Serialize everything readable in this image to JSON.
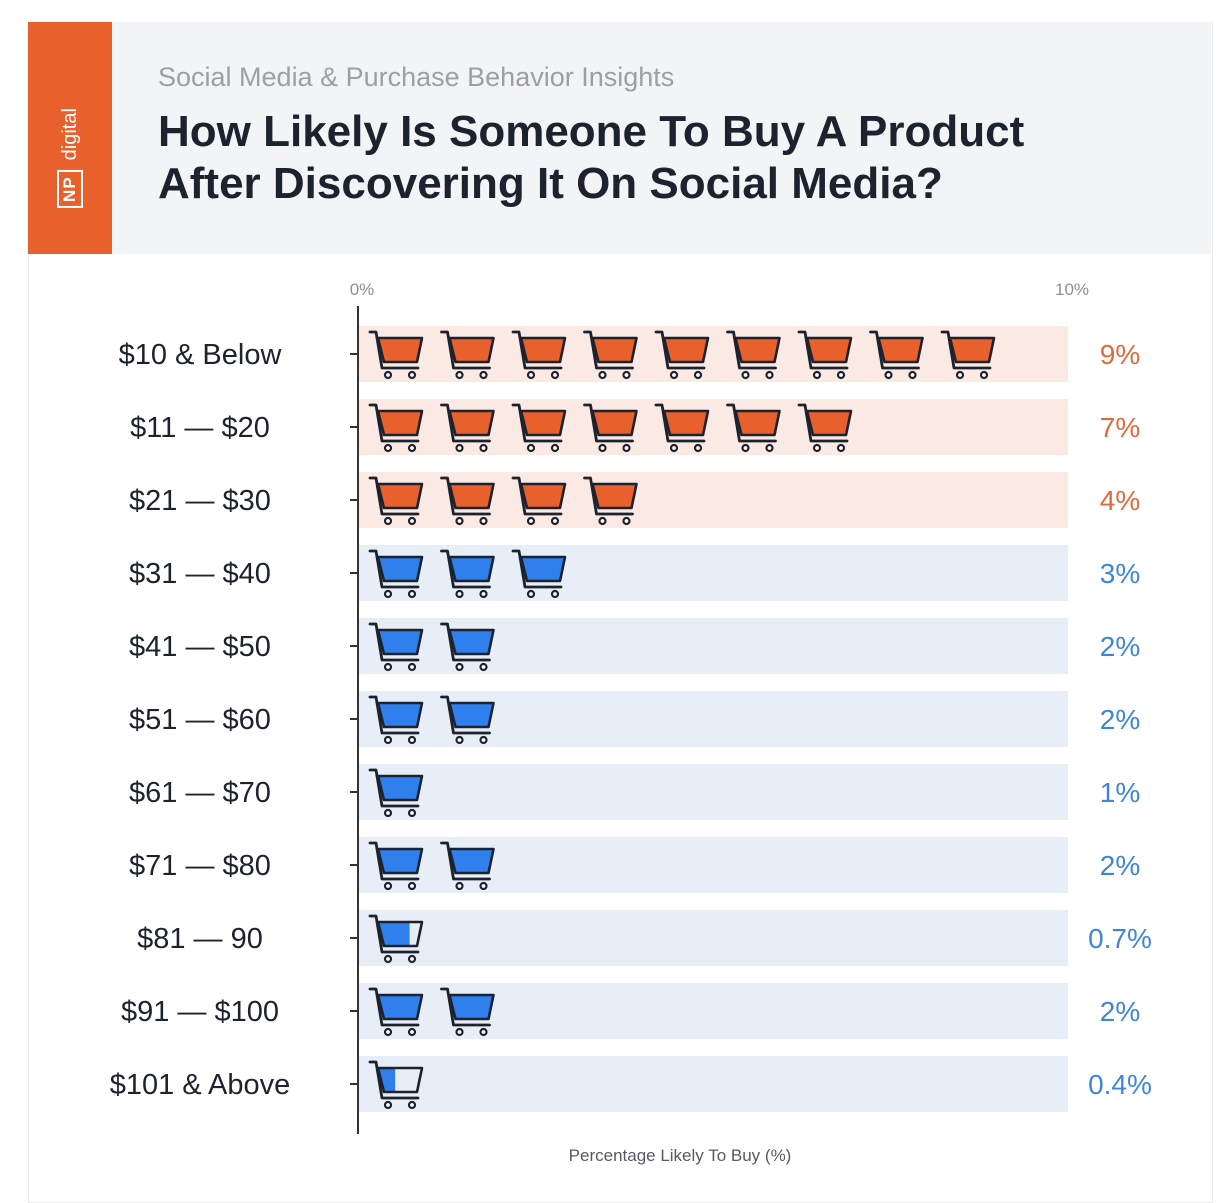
{
  "brand": {
    "np": "NP",
    "name": "digital",
    "color": "#e8602c"
  },
  "header": {
    "subtitle": "Social Media & Purchase Behavior Insights",
    "title_line1": "How Likely Is Someone To Buy A Product",
    "title_line2": "After Discovering It On Social Media?"
  },
  "colors": {
    "orange": "#e8602c",
    "blue": "#2f80ed",
    "orange_band": "#fbe9e3",
    "blue_band": "#e8eef7",
    "orange_text": "#e06a3a",
    "blue_text": "#3f86d8"
  },
  "chart_data": {
    "type": "bar",
    "title": "How Likely Is Someone To Buy A Product After Discovering It On Social Media?",
    "xlabel": "Percentage Likely To Buy (%)",
    "ylabel": "",
    "xlim": [
      0,
      10
    ],
    "tick_labels": [
      "0%",
      "10%"
    ],
    "categories": [
      "$10 & Below",
      "$11 — $20",
      "$21 — $30",
      "$31 — $40",
      "$41 — $50",
      "$51 — $60",
      "$61 — $70",
      "$71 — $80",
      "$81 — 90",
      "$91 — $100",
      "$101 & Above"
    ],
    "values": [
      9,
      7,
      4,
      3,
      2,
      2,
      1,
      2,
      0.7,
      2,
      0.4
    ],
    "value_labels": [
      "9%",
      "7%",
      "4%",
      "3%",
      "2%",
      "2%",
      "1%",
      "2%",
      "0.7%",
      "2%",
      "0.4%"
    ],
    "highlight": [
      true,
      true,
      true,
      false,
      false,
      false,
      false,
      false,
      false,
      false,
      false
    ]
  }
}
